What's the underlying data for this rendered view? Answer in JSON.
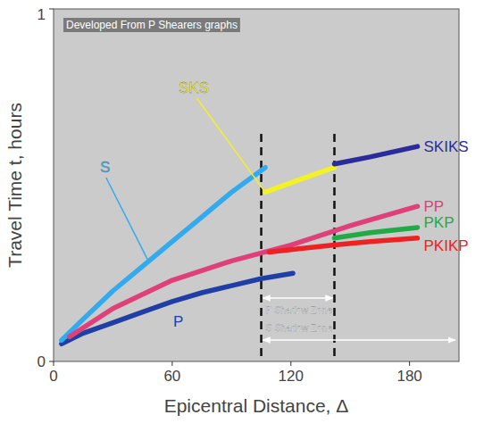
{
  "chart_data": {
    "type": "line",
    "x_label": "Epicentral Distance, Δ",
    "y_label": "Travel Time t, hours",
    "annotation": "Developed From P Shearers graphs",
    "xlim": [
      0,
      205
    ],
    "xticks": [
      0,
      60,
      120,
      180
    ],
    "ylim": [
      0,
      1
    ],
    "yticks": [
      0,
      1
    ],
    "grid": false,
    "series": [
      {
        "name": "P",
        "color": "#1f3fa6",
        "x": [
          4,
          15,
          30,
          45,
          60,
          75,
          90,
          105,
          121
        ],
        "values": [
          0.05,
          0.08,
          0.11,
          0.14,
          0.17,
          0.195,
          0.215,
          0.235,
          0.25
        ]
      },
      {
        "name": "S",
        "color": "#33aaee",
        "x": [
          4,
          15,
          30,
          45,
          60,
          75,
          90,
          107
        ],
        "values": [
          0.06,
          0.12,
          0.2,
          0.27,
          0.34,
          0.41,
          0.48,
          0.55
        ]
      },
      {
        "name": "SKS",
        "color": "#f2f224",
        "x": [
          107,
          124,
          142
        ],
        "values": [
          0.48,
          0.515,
          0.55
        ]
      },
      {
        "name": "PP",
        "color": "#e0407a",
        "x": [
          8,
          30,
          60,
          90,
          120,
          150,
          184
        ],
        "values": [
          0.07,
          0.15,
          0.23,
          0.285,
          0.33,
          0.385,
          0.44
        ]
      },
      {
        "name": "SKIKS",
        "color": "#2b2b9c",
        "x": [
          142,
          160,
          184
        ],
        "values": [
          0.56,
          0.58,
          0.61
        ]
      },
      {
        "name": "PKP",
        "color": "#22aa44",
        "x": [
          142,
          160,
          184
        ],
        "values": [
          0.35,
          0.365,
          0.38
        ]
      },
      {
        "name": "PKIKP",
        "color": "#ee2222",
        "x": [
          109,
          125,
          142,
          160,
          184
        ],
        "values": [
          0.31,
          0.32,
          0.33,
          0.34,
          0.35
        ]
      }
    ],
    "shadow_zones": [
      {
        "label": "P Shadow Zone",
        "x": [
          105,
          142
        ]
      },
      {
        "label": "S Shadow Zone",
        "x": [
          105,
          205
        ]
      }
    ]
  }
}
